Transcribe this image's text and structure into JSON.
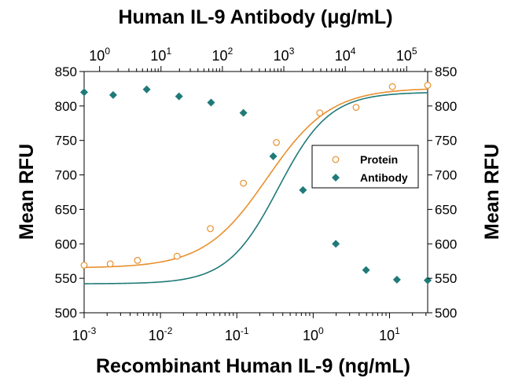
{
  "chart_data": {
    "type": "scatter",
    "title": "Human IL-9 Antibody (μg/mL)",
    "xlabel": "Recombinant Human IL-9 (ng/mL)",
    "ylabel": "Mean RFU",
    "ylabel_right": "Mean RFU",
    "xscale": "log",
    "xlim": [
      0.001,
      31.6
    ],
    "ylim": [
      500,
      850
    ],
    "y_ticks": [
      "500",
      "550",
      "600",
      "650",
      "700",
      "750",
      "800",
      "850"
    ],
    "x_bottom_ticks": [
      {
        "base": "10",
        "exp": "-3"
      },
      {
        "base": "10",
        "exp": "-2"
      },
      {
        "base": "10",
        "exp": "-1"
      },
      {
        "base": "10",
        "exp": "0"
      },
      {
        "base": "10",
        "exp": "1"
      }
    ],
    "x_top_scale": "log",
    "x_top_lim": [
      0.56,
      220000
    ],
    "x_top_ticks": [
      {
        "base": "10",
        "exp": "0"
      },
      {
        "base": "10",
        "exp": "1"
      },
      {
        "base": "10",
        "exp": "2"
      },
      {
        "base": "10",
        "exp": "3"
      },
      {
        "base": "10",
        "exp": "4"
      },
      {
        "base": "10",
        "exp": "5"
      }
    ],
    "legend_position": "right-middle",
    "series": [
      {
        "name": "Protein",
        "marker": "open-circle",
        "color": "#e8902e",
        "axis": "bottom",
        "x": [
          0.001,
          0.0022,
          0.005,
          0.0165,
          0.045,
          0.122,
          0.33,
          1.22,
          3.65,
          10.9,
          31.6
        ],
        "y": [
          569,
          571,
          576,
          582,
          622,
          688,
          747,
          790,
          798,
          828,
          830
        ],
        "fit": {
          "bottom": 565,
          "top": 826,
          "ec50": 0.25,
          "hill": 1.05
        }
      },
      {
        "name": "Antibody",
        "marker": "filled-diamond",
        "color": "#1f7a78",
        "axis": "bottom",
        "x": [
          0.001,
          0.0024,
          0.0066,
          0.0175,
          0.046,
          0.122,
          0.3,
          0.735,
          1.98,
          4.93,
          12.5,
          31.6
        ],
        "y": [
          820,
          816,
          824,
          814,
          805,
          790,
          727,
          678,
          600,
          562,
          548,
          547
        ],
        "fit": {
          "bottom": 542,
          "top": 820,
          "ec50": 0.35,
          "hill": 1.3
        }
      }
    ]
  }
}
